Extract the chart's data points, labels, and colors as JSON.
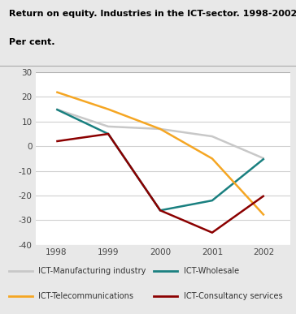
{
  "title_line1": "Return on equity. Industries in the ICT-sector. 1998-2002.",
  "title_line2": "Per cent.",
  "years": [
    1998,
    1999,
    2000,
    2001,
    2002
  ],
  "series": [
    {
      "label": "ICT-Manufacturing industry",
      "color": "#c8c8c8",
      "values": [
        15,
        8,
        7,
        4,
        -5
      ]
    },
    {
      "label": "ICT-Wholesale",
      "color": "#1a8080",
      "values": [
        15,
        5,
        -26,
        -22,
        -5
      ]
    },
    {
      "label": "ICT-Telecommunications",
      "color": "#f5a623",
      "values": [
        22,
        15,
        7,
        -5,
        -28
      ]
    },
    {
      "label": "ICT-Consultancy services",
      "color": "#8b0000",
      "values": [
        2,
        5,
        -26,
        -35,
        -20
      ]
    }
  ],
  "ylim": [
    -40,
    30
  ],
  "yticks": [
    -40,
    -30,
    -20,
    -10,
    0,
    10,
    20,
    30
  ],
  "xticks": [
    1998,
    1999,
    2000,
    2001,
    2002
  ],
  "fig_bg": "#e8e8e8",
  "plot_bg": "#ffffff",
  "grid_color": "#d0d0d0",
  "linewidth": 1.8
}
